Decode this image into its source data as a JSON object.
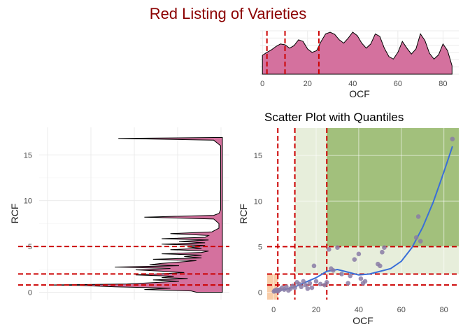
{
  "page_title": "Red Listing of Varieties",
  "colors": {
    "title": "#8b0000",
    "density_fill": "#d4719e",
    "density_line": "#000000",
    "quantile_line": "#cc0000",
    "point": "#8a7ca6",
    "smooth": "#3a6fd8",
    "zone_low": "#f4a460",
    "zone_mid": "#c9d9b0",
    "zone_high": "#8bb05c",
    "grid": "#ebebeb"
  },
  "chart_data": [
    {
      "id": "top_density",
      "type": "area",
      "title": "",
      "xlabel": "OCF",
      "ylabel": "",
      "xlim": [
        -1,
        87
      ],
      "xticks": [
        0,
        20,
        40,
        60,
        80
      ],
      "x": [
        0,
        2,
        4,
        6,
        8,
        10,
        12,
        14,
        16,
        18,
        20,
        22,
        24,
        26,
        28,
        30,
        32,
        34,
        36,
        38,
        40,
        42,
        44,
        46,
        48,
        50,
        52,
        54,
        56,
        58,
        60,
        62,
        64,
        66,
        68,
        70,
        72,
        74,
        76,
        78,
        80,
        82,
        84
      ],
      "density": [
        0.45,
        0.52,
        0.58,
        0.66,
        0.72,
        0.7,
        0.62,
        0.68,
        0.82,
        0.78,
        0.6,
        0.52,
        0.56,
        0.78,
        0.96,
        1.0,
        0.95,
        0.82,
        0.74,
        0.86,
        1.0,
        0.92,
        0.74,
        0.62,
        0.72,
        0.96,
        0.9,
        0.62,
        0.42,
        0.36,
        0.52,
        0.78,
        0.62,
        0.48,
        0.6,
        0.96,
        0.8,
        0.5,
        0.36,
        0.46,
        0.72,
        0.56,
        0.2
      ],
      "quantiles": [
        2,
        10,
        25
      ]
    },
    {
      "id": "left_density",
      "type": "area",
      "title": "",
      "xlabel": "",
      "ylabel": "RCF",
      "ylim": [
        -0.8,
        18
      ],
      "yticks": [
        0,
        5,
        10,
        15
      ],
      "y": [
        0,
        0.15,
        0.3,
        0.45,
        0.6,
        0.75,
        0.8,
        0.9,
        1.05,
        1.2,
        1.35,
        1.5,
        1.6,
        1.75,
        1.9,
        2.0,
        2.15,
        2.3,
        2.45,
        2.6,
        2.75,
        2.9,
        3.0,
        3.15,
        3.3,
        3.45,
        3.6,
        3.75,
        3.9,
        4.05,
        4.2,
        4.35,
        4.5,
        4.65,
        4.8,
        4.95,
        5.1,
        5.25,
        5.4,
        5.55,
        5.7,
        5.85,
        6.0,
        6.2,
        6.4,
        6.6,
        6.8,
        7.0,
        7.5,
        8.0,
        8.2,
        8.4,
        8.6,
        9.0,
        10.0,
        12.0,
        14.0,
        16.0,
        16.6,
        16.8,
        16.9
      ],
      "density": [
        0.15,
        0.18,
        0.45,
        0.3,
        0.62,
        0.82,
        1.0,
        0.55,
        0.4,
        0.25,
        0.4,
        0.2,
        0.35,
        0.28,
        0.5,
        0.38,
        0.22,
        0.35,
        0.5,
        0.3,
        0.62,
        0.25,
        0.42,
        0.35,
        0.25,
        0.15,
        0.4,
        0.12,
        0.22,
        0.12,
        0.35,
        0.12,
        0.08,
        0.3,
        0.12,
        0.2,
        0.1,
        0.35,
        0.1,
        0.25,
        0.08,
        0.35,
        0.1,
        0.08,
        0.3,
        0.06,
        0.04,
        0.02,
        0.02,
        0.05,
        0.45,
        0.05,
        0.02,
        0.01,
        0.01,
        0.01,
        0.01,
        0.01,
        0.05,
        0.6,
        0.0
      ],
      "quantiles": [
        0.8,
        2.0,
        5.0
      ]
    },
    {
      "id": "scatter",
      "type": "scatter",
      "title": "Scatter Plot with Quantiles",
      "xlabel": "OCF",
      "ylabel": "RCF",
      "xlim": [
        -3,
        87
      ],
      "ylim": [
        -0.8,
        18
      ],
      "xticks": [
        0,
        20,
        40,
        60,
        80
      ],
      "yticks": [
        0,
        5,
        10,
        15
      ],
      "x_quantiles": [
        2,
        10,
        25
      ],
      "y_quantiles": [
        0.8,
        2.0,
        5.0
      ],
      "points": [
        [
          0.2,
          0.1
        ],
        [
          0.6,
          0.2
        ],
        [
          1.0,
          0.15
        ],
        [
          1.5,
          0.3
        ],
        [
          2.0,
          0.1
        ],
        [
          2.5,
          0.25
        ],
        [
          3.0,
          0.3
        ],
        [
          4.0,
          0.5
        ],
        [
          5.0,
          0.3
        ],
        [
          6.0,
          0.6
        ],
        [
          7.0,
          0.2
        ],
        [
          8.0,
          0.4
        ],
        [
          9.0,
          0.7
        ],
        [
          10.0,
          0.5
        ],
        [
          11.0,
          1.1
        ],
        [
          12.0,
          0.9
        ],
        [
          13.0,
          0.6
        ],
        [
          14.0,
          1.2
        ],
        [
          15.0,
          0.8
        ],
        [
          16.0,
          0.4
        ],
        [
          17.0,
          1.0
        ],
        [
          18.0,
          0.5
        ],
        [
          19.0,
          2.9
        ],
        [
          20.0,
          1.2
        ],
        [
          22.0,
          0.9
        ],
        [
          24.0,
          0.8
        ],
        [
          25.0,
          1.1
        ],
        [
          26.0,
          4.7
        ],
        [
          27.0,
          2.6
        ],
        [
          28.0,
          2.4
        ],
        [
          30.0,
          4.9
        ],
        [
          32.0,
          2.0
        ],
        [
          35.0,
          1.0
        ],
        [
          36.0,
          1.8
        ],
        [
          38.0,
          3.6
        ],
        [
          40.0,
          4.2
        ],
        [
          41.0,
          1.5
        ],
        [
          42.0,
          1.0
        ],
        [
          43.0,
          1.2
        ],
        [
          49.0,
          3.1
        ],
        [
          50.0,
          2.9
        ],
        [
          51.0,
          4.4
        ],
        [
          52.0,
          4.9
        ],
        [
          67.0,
          6.0
        ],
        [
          68.0,
          8.3
        ],
        [
          69.0,
          5.6
        ],
        [
          84.0,
          16.8
        ]
      ],
      "smooth": {
        "x": [
          0,
          5,
          10,
          15,
          20,
          25,
          30,
          35,
          40,
          45,
          50,
          55,
          60,
          65,
          70,
          75,
          80,
          84
        ],
        "y": [
          0.1,
          0.3,
          0.6,
          1.1,
          1.6,
          2.3,
          2.5,
          2.2,
          1.9,
          2.0,
          2.3,
          2.6,
          3.4,
          4.9,
          7.1,
          9.9,
          13.2,
          16.0
        ]
      }
    }
  ]
}
